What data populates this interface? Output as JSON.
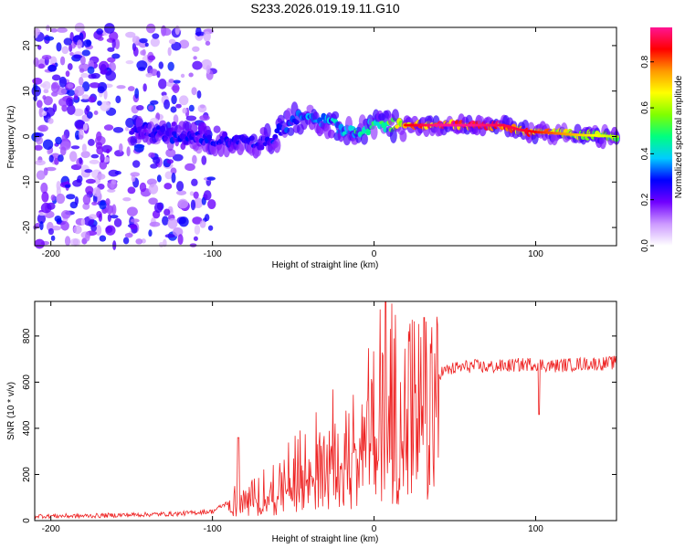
{
  "title": "S233.2026.019.19.11.G10",
  "chart_data": [
    {
      "type": "heatmap",
      "name": "spectrogram",
      "xlabel": "Height of straight line (km)",
      "ylabel": "Frequency (Hz)",
      "xlim": [
        -210,
        150
      ],
      "ylim": [
        -24,
        24
      ],
      "xticks": [
        -200,
        -100,
        0,
        100
      ],
      "yticks": [
        -20,
        -10,
        0,
        10,
        20
      ],
      "colorbar": {
        "label": "Normalized spectral amplitude",
        "range": [
          0,
          0.95
        ],
        "ticks": [
          0.0,
          0.2,
          0.4,
          0.6,
          0.8
        ],
        "colormap": [
          "#ffffff",
          "#cc99ff",
          "#7000ff",
          "#0000ff",
          "#00ccff",
          "#00ff80",
          "#80ff00",
          "#ffff00",
          "#ff9900",
          "#ff0000",
          "#ff1493"
        ]
      },
      "ridge": {
        "x": [
          -150,
          -135,
          -120,
          -100,
          -85,
          -70,
          -60,
          -50,
          -40,
          -30,
          -20,
          -10,
          0,
          10,
          20,
          40,
          60,
          80,
          90,
          100,
          110,
          120,
          130,
          140,
          150
        ],
        "freq": [
          1.5,
          1.0,
          0.0,
          -0.5,
          -1.0,
          -1.5,
          0.5,
          4.0,
          4.0,
          3.5,
          2.0,
          1.0,
          2.5,
          2.5,
          2.5,
          2.5,
          2.5,
          2.5,
          1.5,
          1.0,
          0.8,
          0.5,
          0.3,
          0.2,
          0.0
        ],
        "amplitude": [
          0.25,
          0.3,
          0.3,
          0.3,
          0.3,
          0.3,
          0.3,
          0.35,
          0.4,
          0.4,
          0.45,
          0.5,
          0.55,
          0.6,
          0.85,
          0.95,
          0.95,
          0.9,
          0.9,
          0.85,
          0.8,
          0.75,
          0.7,
          0.65,
          0.6
        ]
      },
      "noise_region_km": [
        -210,
        -100
      ]
    },
    {
      "type": "line",
      "name": "snr",
      "xlabel": "Height of straight line (km)",
      "ylabel": "SNR (10 * v/v)",
      "xlim": [
        -210,
        150
      ],
      "ylim": [
        0,
        950
      ],
      "xticks": [
        -200,
        -100,
        0,
        100
      ],
      "yticks": [
        0,
        200,
        400,
        600,
        800
      ],
      "color": "#ee2222",
      "series": [
        {
          "name": "SNR",
          "x": [
            -210,
            -180,
            -150,
            -120,
            -100,
            -90,
            -85,
            -80,
            -70,
            -60,
            -50,
            -40,
            -30,
            -20,
            -10,
            0,
            5,
            10,
            20,
            30,
            40,
            50,
            60,
            70,
            80,
            90,
            100,
            110,
            120,
            130,
            140,
            150
          ],
          "envelope": [
            20,
            20,
            25,
            30,
            40,
            80,
            120,
            100,
            160,
            200,
            260,
            320,
            380,
            450,
            520,
            600,
            700,
            700,
            660,
            650,
            640,
            660,
            670,
            665,
            670,
            675,
            680,
            670,
            675,
            680,
            680,
            685
          ],
          "spikes": [
            {
              "x": -84,
              "y": 360
            },
            {
              "x": 7,
              "y": 950
            },
            {
              "x": 31,
              "y": 880
            },
            {
              "x": 102,
              "y": 460
            }
          ]
        }
      ]
    }
  ]
}
